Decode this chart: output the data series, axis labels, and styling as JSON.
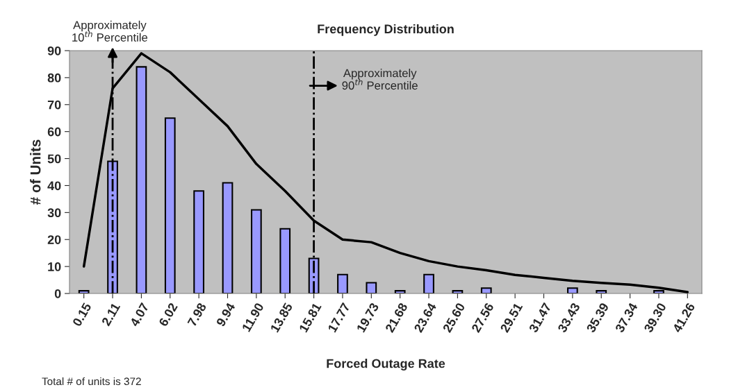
{
  "chart_data": {
    "type": "bar",
    "title": "Frequency Distribution",
    "xlabel": "Forced Outage Rate",
    "ylabel": "# of Units",
    "categories": [
      "0.15",
      "2.11",
      "4.07",
      "6.02",
      "7.98",
      "9.94",
      "11.90",
      "13.85",
      "15.81",
      "17.77",
      "19.73",
      "21.68",
      "23.64",
      "25.60",
      "27.56",
      "29.51",
      "31.47",
      "33.43",
      "35.39",
      "37.34",
      "39.30",
      "41.26"
    ],
    "series": [
      {
        "color": "#9999ff",
        "values": [
          1,
          49,
          84,
          65,
          38,
          41,
          31,
          24,
          13,
          7,
          4,
          1,
          7,
          1,
          2,
          0,
          0,
          2,
          1,
          0,
          1,
          0
        ]
      },
      {
        "type": "line",
        "color": "#000000",
        "values": [
          10,
          76,
          89,
          82,
          72,
          62,
          48,
          38,
          27,
          20,
          19,
          15,
          12,
          10,
          8.6,
          6.9,
          5.8,
          4.7,
          3.9,
          3.3,
          2.1,
          0.5
        ]
      }
    ],
    "ylim": [
      0,
      90
    ],
    "yticks": [
      0,
      10,
      20,
      30,
      40,
      50,
      60,
      70,
      80,
      90
    ],
    "grid": false,
    "legend": false,
    "marker": "none",
    "ref_lines": [
      {
        "axis": "x",
        "value": "2.11",
        "label": "Approximately\n10$^{th}$ Percentile",
        "color": "#000000",
        "line_style": "dashed"
      },
      {
        "axis": "x",
        "value": "15.81",
        "label": "Approximately\n90$^{th}$ Percentile",
        "color": "#000000",
        "line_style": "dashed"
      }
    ],
    "annotations": [
      "Total # of units is 372"
    ]
  }
}
